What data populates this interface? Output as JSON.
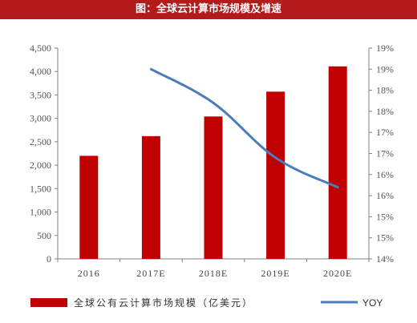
{
  "title": "图：全球云计算市场规模及增速",
  "chart_data": {
    "type": "bar",
    "categories": [
      "2016",
      "2017E",
      "2018E",
      "2019E",
      "2020E"
    ],
    "series": [
      {
        "name": "全球公有云计算市场规模（亿美元）",
        "type": "bar",
        "axis": "left",
        "color": "#c00000",
        "values": [
          2200,
          2620,
          3040,
          3570,
          4110
        ]
      },
      {
        "name": "YOY",
        "type": "line",
        "axis": "right",
        "color": "#4a7ebb",
        "values": [
          null,
          18.5,
          17.7,
          16.4,
          15.7
        ]
      }
    ],
    "left_axis": {
      "ylim": [
        0,
        4500
      ],
      "ticks": [
        0,
        500,
        1000,
        1500,
        2000,
        2500,
        3000,
        3500,
        4000,
        4500
      ],
      "tick_labels": [
        "0",
        "500",
        "1,000",
        "1,500",
        "2,000",
        "2,500",
        "3,000",
        "3,500",
        "4,000",
        "4,500"
      ]
    },
    "right_axis": {
      "ylim": [
        14,
        19
      ],
      "ticks": [
        14,
        14.5,
        15,
        15.5,
        16,
        16.5,
        17,
        17.5,
        18,
        18.5,
        19
      ],
      "tick_labels": [
        "14%",
        "15%",
        "15%",
        "16%",
        "16%",
        "17%",
        "17%",
        "18%",
        "18%",
        "19%",
        "19%"
      ]
    },
    "grid": false,
    "legend_position": "bottom"
  }
}
